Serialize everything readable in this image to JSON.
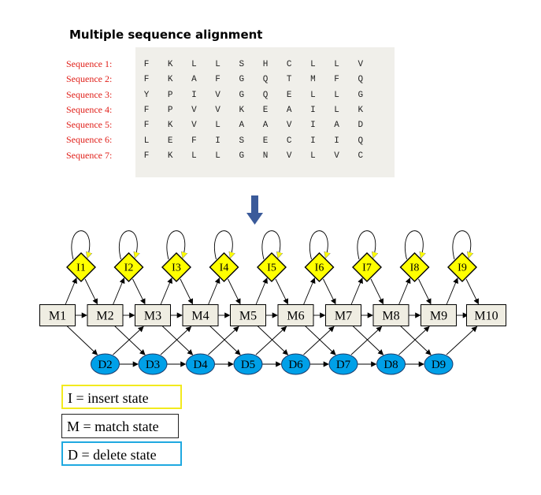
{
  "title": "Multiple sequence alignment",
  "alignment": {
    "labels": [
      "Sequence 1:",
      "Sequence 2:",
      "Sequence 3:",
      "Sequence 4:",
      "Sequence 5:",
      "Sequence 6:",
      "Sequence 7:"
    ],
    "rows": [
      [
        "F",
        "K",
        "L",
        "L",
        "S",
        "H",
        "C",
        "L",
        "L",
        "V"
      ],
      [
        "F",
        "K",
        "A",
        "F",
        "G",
        "Q",
        "T",
        "M",
        "F",
        "Q"
      ],
      [
        "Y",
        "P",
        "I",
        "V",
        "G",
        "Q",
        "E",
        "L",
        "L",
        "G"
      ],
      [
        "F",
        "P",
        "V",
        "V",
        "K",
        "E",
        "A",
        "I",
        "L",
        "K"
      ],
      [
        "F",
        "K",
        "V",
        "L",
        "A",
        "A",
        "V",
        "I",
        "A",
        "D"
      ],
      [
        "L",
        "E",
        "F",
        "I",
        "S",
        "E",
        "C",
        "I",
        "I",
        "Q"
      ],
      [
        "F",
        "K",
        "L",
        "L",
        "G",
        "N",
        "V",
        "L",
        "V",
        "C"
      ]
    ]
  },
  "hmm": {
    "insert_states": [
      "I1",
      "I2",
      "I3",
      "I4",
      "I5",
      "I6",
      "I7",
      "I8",
      "I9"
    ],
    "match_states": [
      "M1",
      "M2",
      "M3",
      "M4",
      "M5",
      "M6",
      "M7",
      "M8",
      "M9",
      "M10"
    ],
    "delete_states": [
      "D2",
      "D3",
      "D4",
      "D5",
      "D6",
      "D7",
      "D8",
      "D9"
    ],
    "colors": {
      "insert": "#ffff00",
      "match": "#efede2",
      "delete": "#00a0e8",
      "arrow": "#3a5a9a"
    }
  },
  "legend": {
    "insert": "I = insert state",
    "match": "M = match state",
    "delete": "D = delete state",
    "colors": {
      "insert": "#f2ea1e",
      "match": "#222222",
      "delete": "#1fa9e0"
    }
  }
}
